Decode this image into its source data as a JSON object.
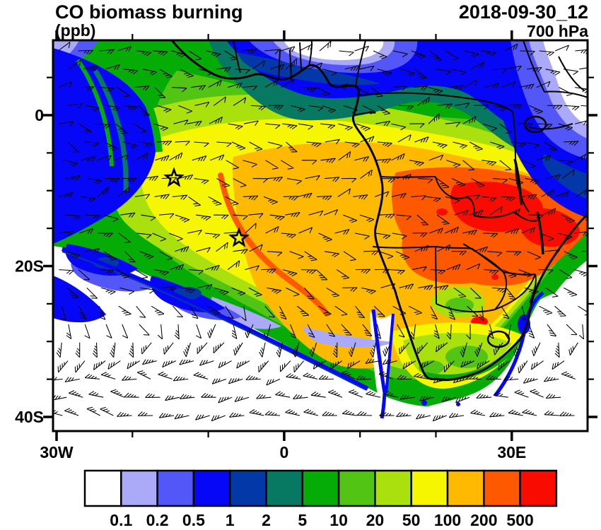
{
  "header": {
    "title": "CO biomass burning",
    "units": "(ppb)",
    "datetime": "2018-09-30_12",
    "level": "700 hPa"
  },
  "axes": {
    "y_ticks": [
      {
        "label": "0",
        "lat": 0
      },
      {
        "label": "20S",
        "lat": -20
      },
      {
        "label": "40S",
        "lat": -40
      }
    ],
    "y_minor_lats": [
      5,
      -5,
      -10,
      -15,
      -25,
      -30,
      -35
    ],
    "x_ticks": [
      {
        "label": "30W",
        "lon": -30
      },
      {
        "label": "0",
        "lon": 0
      },
      {
        "label": "30E",
        "lon": 30
      }
    ],
    "x_minor_lons": [
      -20,
      -10,
      10,
      20,
      40
    ]
  },
  "colorbar": {
    "labels": [
      "0.1",
      "0.2",
      "0.5",
      "1",
      "2",
      "5",
      "10",
      "20",
      "50",
      "100",
      "200",
      "500"
    ],
    "colors": [
      "#FFFFFF",
      "#AAAAF9",
      "#5457F7",
      "#0607F7",
      "#0338A8",
      "#077862",
      "#06AC06",
      "#52C413",
      "#A9E00D",
      "#F6F600",
      "#FFBA00",
      "#FF5900",
      "#F90B00"
    ]
  },
  "chart_data": {
    "type": "heatmap",
    "subtype": "filled-contour-map with wind barbs",
    "title": "CO biomass burning",
    "units": "ppb",
    "pressure_level": "700 hPa",
    "valid_time": "2018-09-30_12",
    "region": {
      "lon_min_deg_east": -30,
      "lon_max_deg_east": 40,
      "lat_min_deg_north": -41.5,
      "lat_max_deg_north": 10
    },
    "contour_levels_ppb": [
      0.1,
      0.2,
      0.5,
      1,
      2,
      5,
      10,
      20,
      50,
      100,
      200,
      500
    ],
    "palette_hex": [
      "#FFFFFF",
      "#AAAAF9",
      "#5457F7",
      "#0607F7",
      "#0338A8",
      "#077862",
      "#06AC06",
      "#52C413",
      "#A9E00D",
      "#F6F600",
      "#FFBA00",
      "#FF5900",
      "#F90B00"
    ],
    "overlays": [
      "wind barbs at 700 hPa",
      "coastlines",
      "country borders",
      "lakes"
    ],
    "markers": [
      {
        "symbol": "star",
        "lon_deg_east": -14.5,
        "lat_deg_north": -8.3
      },
      {
        "symbol": "star",
        "lon_deg_east": -6.0,
        "lat_deg_north": -16.3
      }
    ],
    "features": [
      {
        "region": "Zambia / southern DRC / Tanzania-Malawi belt",
        "value_ppb": "200-500+ (red maximum)"
      },
      {
        "region": "Angola, Namibia, Botswana and SE Atlantic offshore plume",
        "value_ppb": "100-500 (orange / orange-red)"
      },
      {
        "region": "plume fans west over tropical Atlantic toward 30W",
        "value_ppb": "5-50 (green to yellow)"
      },
      {
        "region": "Sahel / Gulf of Guinea north edge band",
        "value_ppb": "0.1-2 (white-blue-teal gradient)"
      },
      {
        "region": "Horn of Africa / NE corner",
        "value_ppb": "<0.5 (white and light blue)"
      },
      {
        "region": "subtropical South Atlantic and SW Indian Ocean",
        "value_ppb": "<0.1 (white) with 0.1-1 blue filaments"
      },
      {
        "region": "South Africa interior",
        "value_ppb": "10-100 (green-yellow)"
      }
    ],
    "wind_summary": "Easterly barbs within the tropical plume north of ~25S; strong multi-barb westerlies south of ~30S"
  }
}
